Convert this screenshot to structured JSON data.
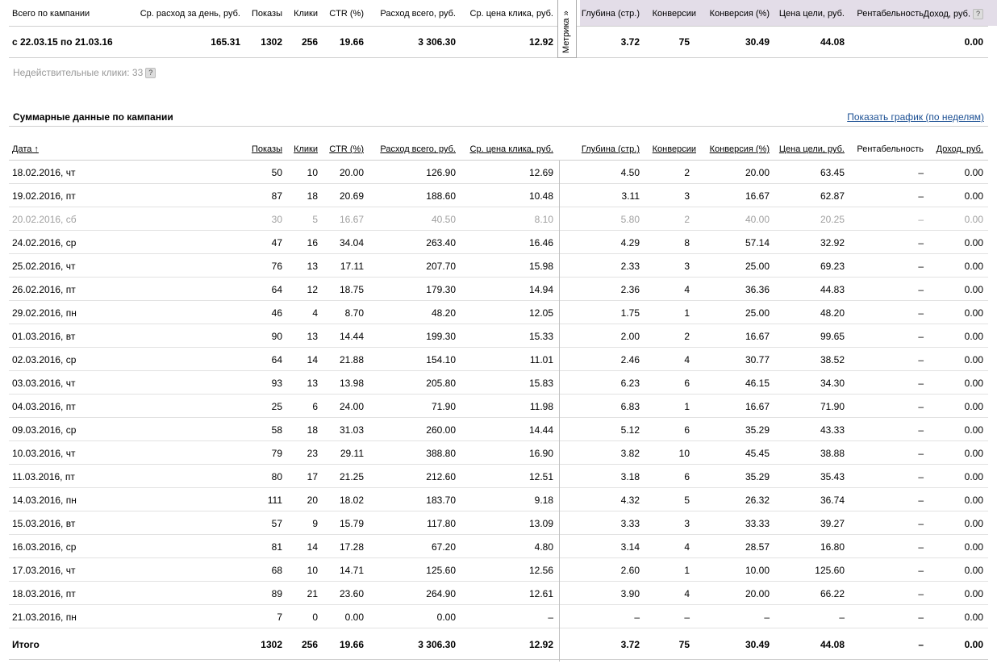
{
  "summary": {
    "headers": {
      "campaign": "Всего по кампании",
      "avg_daily": "Ср. расход за день, руб.",
      "impressions": "Показы",
      "clicks": "Клики",
      "ctr": "CTR (%)",
      "total_spend": "Расход всего, руб.",
      "avg_cpc": "Ср. цена клика, руб.",
      "depth": "Глубина (стр.)",
      "conversions": "Конверсии",
      "conv_rate": "Конверсия (%)",
      "goal_price": "Цена цели, руб.",
      "profitability": "Рентабельность",
      "income": "Доход, руб."
    },
    "values": {
      "period": "с 22.03.15 по 21.03.16",
      "avg_daily": "165.31",
      "impressions": "1302",
      "clicks": "256",
      "ctr": "19.66",
      "total_spend": "3 306.30",
      "avg_cpc": "12.92",
      "depth": "3.72",
      "conversions": "75",
      "conv_rate": "30.49",
      "goal_price": "44.08",
      "profitability": "",
      "income": "0.00"
    },
    "metrika_label": "Метрика »",
    "invalid_clicks": "Недействительные клики: 33",
    "help_icon": "?"
  },
  "section": {
    "title": "Суммарные данные по кампании",
    "chart_link": "Показать график (по неделям)"
  },
  "table": {
    "headers": {
      "date": "Дата ↑",
      "impressions": "Показы",
      "clicks": "Клики",
      "ctr": "CTR (%)",
      "total_spend": "Расход всего, руб.",
      "avg_cpc": "Ср. цена клика, руб.",
      "depth": "Глубина (стр.)",
      "conversions": "Конверсии",
      "conv_rate": "Конверсия (%)",
      "goal_price": "Цена цели, руб.",
      "profitability": "Рентабельность",
      "income": "Доход, руб."
    },
    "rows": [
      [
        "18.02.2016, чт",
        "50",
        "10",
        "20.00",
        "126.90",
        "12.69",
        "4.50",
        "2",
        "20.00",
        "63.45",
        "–",
        "0.00"
      ],
      [
        "19.02.2016, пт",
        "87",
        "18",
        "20.69",
        "188.60",
        "10.48",
        "3.11",
        "3",
        "16.67",
        "62.87",
        "–",
        "0.00"
      ],
      [
        "20.02.2016, сб",
        "30",
        "5",
        "16.67",
        "40.50",
        "8.10",
        "5.80",
        "2",
        "40.00",
        "20.25",
        "–",
        "0.00"
      ],
      [
        "24.02.2016, ср",
        "47",
        "16",
        "34.04",
        "263.40",
        "16.46",
        "4.29",
        "8",
        "57.14",
        "32.92",
        "–",
        "0.00"
      ],
      [
        "25.02.2016, чт",
        "76",
        "13",
        "17.11",
        "207.70",
        "15.98",
        "2.33",
        "3",
        "25.00",
        "69.23",
        "–",
        "0.00"
      ],
      [
        "26.02.2016, пт",
        "64",
        "12",
        "18.75",
        "179.30",
        "14.94",
        "2.36",
        "4",
        "36.36",
        "44.83",
        "–",
        "0.00"
      ],
      [
        "29.02.2016, пн",
        "46",
        "4",
        "8.70",
        "48.20",
        "12.05",
        "1.75",
        "1",
        "25.00",
        "48.20",
        "–",
        "0.00"
      ],
      [
        "01.03.2016, вт",
        "90",
        "13",
        "14.44",
        "199.30",
        "15.33",
        "2.00",
        "2",
        "16.67",
        "99.65",
        "–",
        "0.00"
      ],
      [
        "02.03.2016, ср",
        "64",
        "14",
        "21.88",
        "154.10",
        "11.01",
        "2.46",
        "4",
        "30.77",
        "38.52",
        "–",
        "0.00"
      ],
      [
        "03.03.2016, чт",
        "93",
        "13",
        "13.98",
        "205.80",
        "15.83",
        "6.23",
        "6",
        "46.15",
        "34.30",
        "–",
        "0.00"
      ],
      [
        "04.03.2016, пт",
        "25",
        "6",
        "24.00",
        "71.90",
        "11.98",
        "6.83",
        "1",
        "16.67",
        "71.90",
        "–",
        "0.00"
      ],
      [
        "09.03.2016, ср",
        "58",
        "18",
        "31.03",
        "260.00",
        "14.44",
        "5.12",
        "6",
        "35.29",
        "43.33",
        "–",
        "0.00"
      ],
      [
        "10.03.2016, чт",
        "79",
        "23",
        "29.11",
        "388.80",
        "16.90",
        "3.82",
        "10",
        "45.45",
        "38.88",
        "–",
        "0.00"
      ],
      [
        "11.03.2016, пт",
        "80",
        "17",
        "21.25",
        "212.60",
        "12.51",
        "3.18",
        "6",
        "35.29",
        "35.43",
        "–",
        "0.00"
      ],
      [
        "14.03.2016, пн",
        "111",
        "20",
        "18.02",
        "183.70",
        "9.18",
        "4.32",
        "5",
        "26.32",
        "36.74",
        "–",
        "0.00"
      ],
      [
        "15.03.2016, вт",
        "57",
        "9",
        "15.79",
        "117.80",
        "13.09",
        "3.33",
        "3",
        "33.33",
        "39.27",
        "–",
        "0.00"
      ],
      [
        "16.03.2016, ср",
        "81",
        "14",
        "17.28",
        "67.20",
        "4.80",
        "3.14",
        "4",
        "28.57",
        "16.80",
        "–",
        "0.00"
      ],
      [
        "17.03.2016, чт",
        "68",
        "10",
        "14.71",
        "125.60",
        "12.56",
        "2.60",
        "1",
        "10.00",
        "125.60",
        "–",
        "0.00"
      ],
      [
        "18.03.2016, пт",
        "89",
        "21",
        "23.60",
        "264.90",
        "12.61",
        "3.90",
        "4",
        "20.00",
        "66.22",
        "–",
        "0.00"
      ],
      [
        "21.03.2016, пн",
        "7",
        "0",
        "0.00",
        "0.00",
        "–",
        "–",
        "–",
        "–",
        "–",
        "–",
        "0.00"
      ]
    ],
    "muted_rows": [
      2
    ],
    "total": [
      "Итого",
      "1302",
      "256",
      "19.66",
      "3 306.30",
      "12.92",
      "3.72",
      "75",
      "30.49",
      "44.08",
      "–",
      "0.00"
    ]
  }
}
